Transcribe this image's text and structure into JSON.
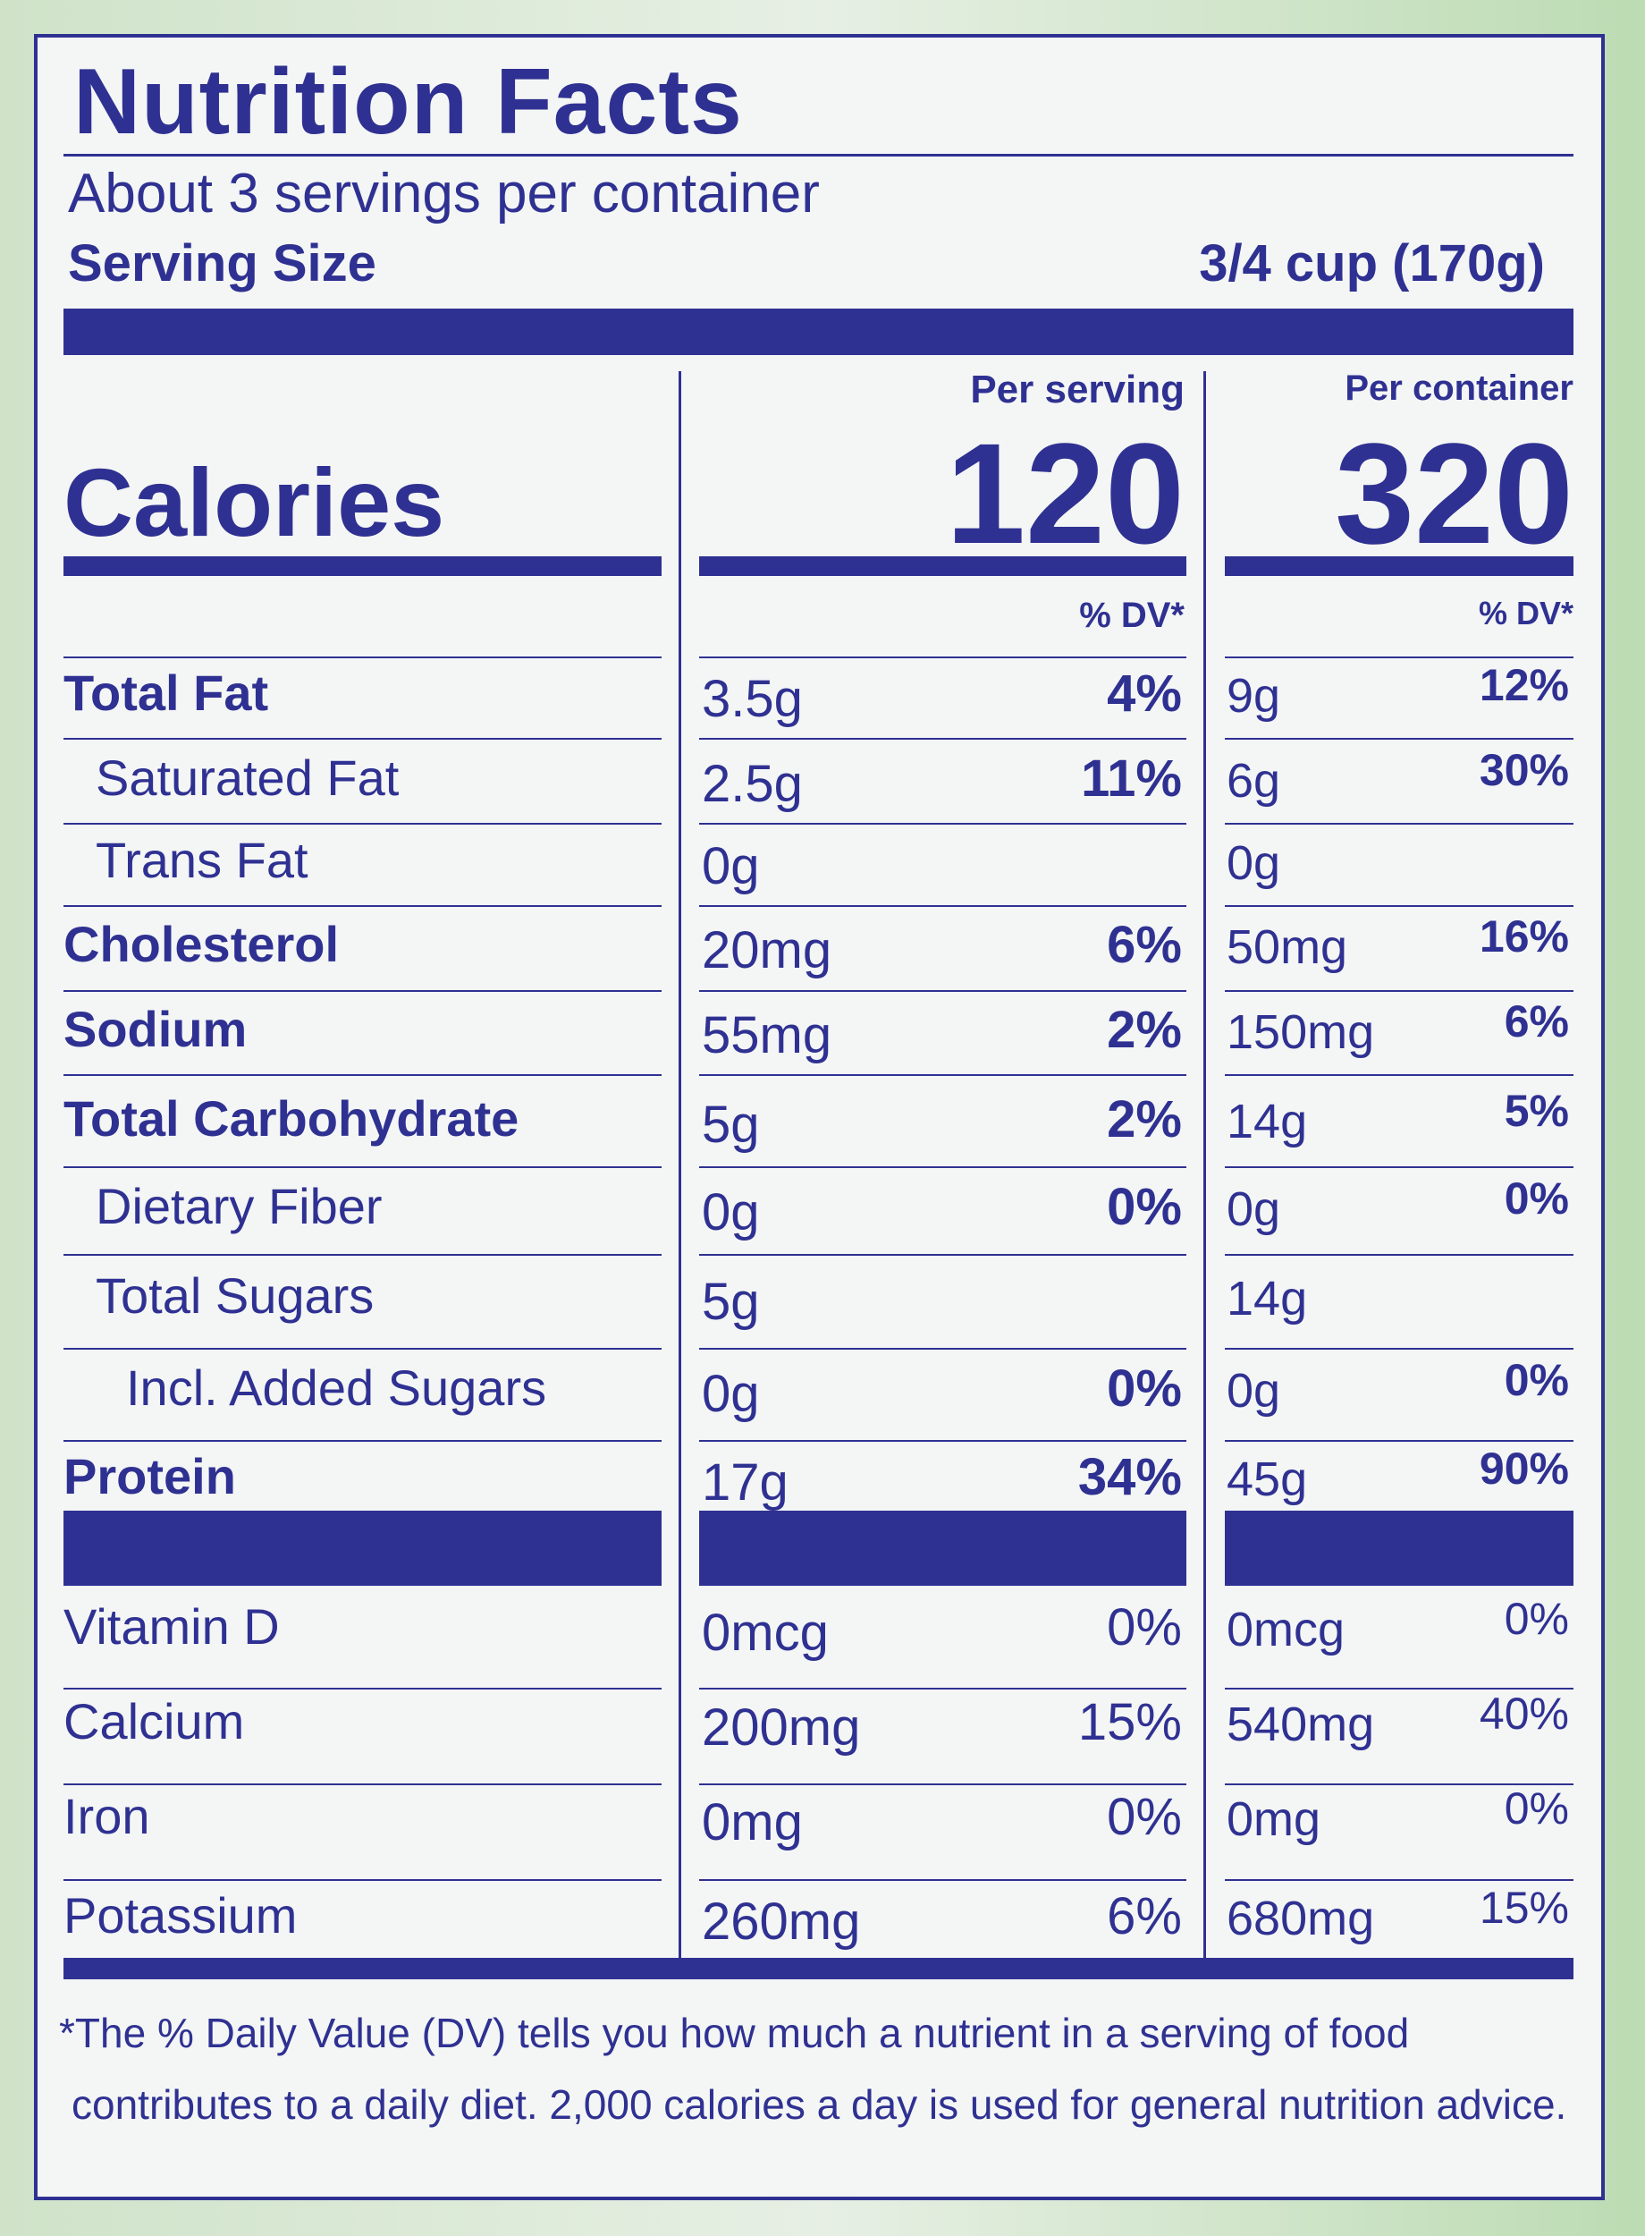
{
  "header": {
    "title": "Nutrition Facts",
    "servings": "About 3 servings per container",
    "serving_size_label": "Serving Size",
    "serving_size": "3/4 cup (170g)"
  },
  "calories": {
    "label": "Calories",
    "per_serving_header": "Per serving",
    "per_container_header": "Per container",
    "per_serving": "120",
    "per_container": "320"
  },
  "dv_header": [
    "% DV*",
    "% DV*"
  ],
  "nutrients": [
    {
      "name": "Total Fat",
      "serving": "3.5g",
      "serving_dv": "4%",
      "container": "9g",
      "container_dv": "12%"
    },
    {
      "name": "Saturated Fat",
      "serving": "2.5g",
      "serving_dv": "11%",
      "container": "6g",
      "container_dv": "30%"
    },
    {
      "name": "Trans Fat",
      "serving": "0g",
      "container": "0g"
    },
    {
      "name": "Cholesterol",
      "serving": "20mg",
      "serving_dv": "6%",
      "container": "50mg",
      "container_dv": "16%"
    },
    {
      "name": "Sodium",
      "serving": "55mg",
      "serving_dv": "2%",
      "container": "150mg",
      "container_dv": "6%"
    },
    {
      "name": "Total Carbohydrate",
      "serving": "5g",
      "serving_dv": "2%",
      "container": "14g",
      "container_dv": "5%"
    },
    {
      "name": "Dietary Fiber",
      "serving": "0g",
      "serving_dv": "0%",
      "container": "0g",
      "container_dv": "0%"
    },
    {
      "name": "Total Sugars",
      "serving": "5g",
      "container": "14g"
    },
    {
      "name": "Incl. Added Sugars",
      "serving": "0g",
      "serving_dv": "0%",
      "container": "0g",
      "container_dv": "0%"
    },
    {
      "name": "Protein",
      "serving": "17g",
      "serving_dv": "34%",
      "container": "45g",
      "container_dv": "90%"
    }
  ],
  "vitamins": [
    {
      "name": "Vitamin D",
      "serving": "0mcg",
      "serving_dv": "0%",
      "container": "0mcg",
      "container_dv": "0%"
    },
    {
      "name": "Calcium",
      "serving": "200mg",
      "serving_dv": "15%",
      "container": "540mg",
      "container_dv": "40%"
    },
    {
      "name": "Iron",
      "serving": "0mg",
      "serving_dv": "0%",
      "container": "0mg",
      "container_dv": "0%"
    },
    {
      "name": "Potassium",
      "serving": "260mg",
      "serving_dv": "6%",
      "container": "680mg",
      "container_dv": "15%"
    }
  ],
  "footnote": [
    "*The % Daily Value (DV) tells you how much a nutrient in a serving of food",
    "contributes to a daily diet. 2,000 calories a day is used for general nutrition advice."
  ]
}
